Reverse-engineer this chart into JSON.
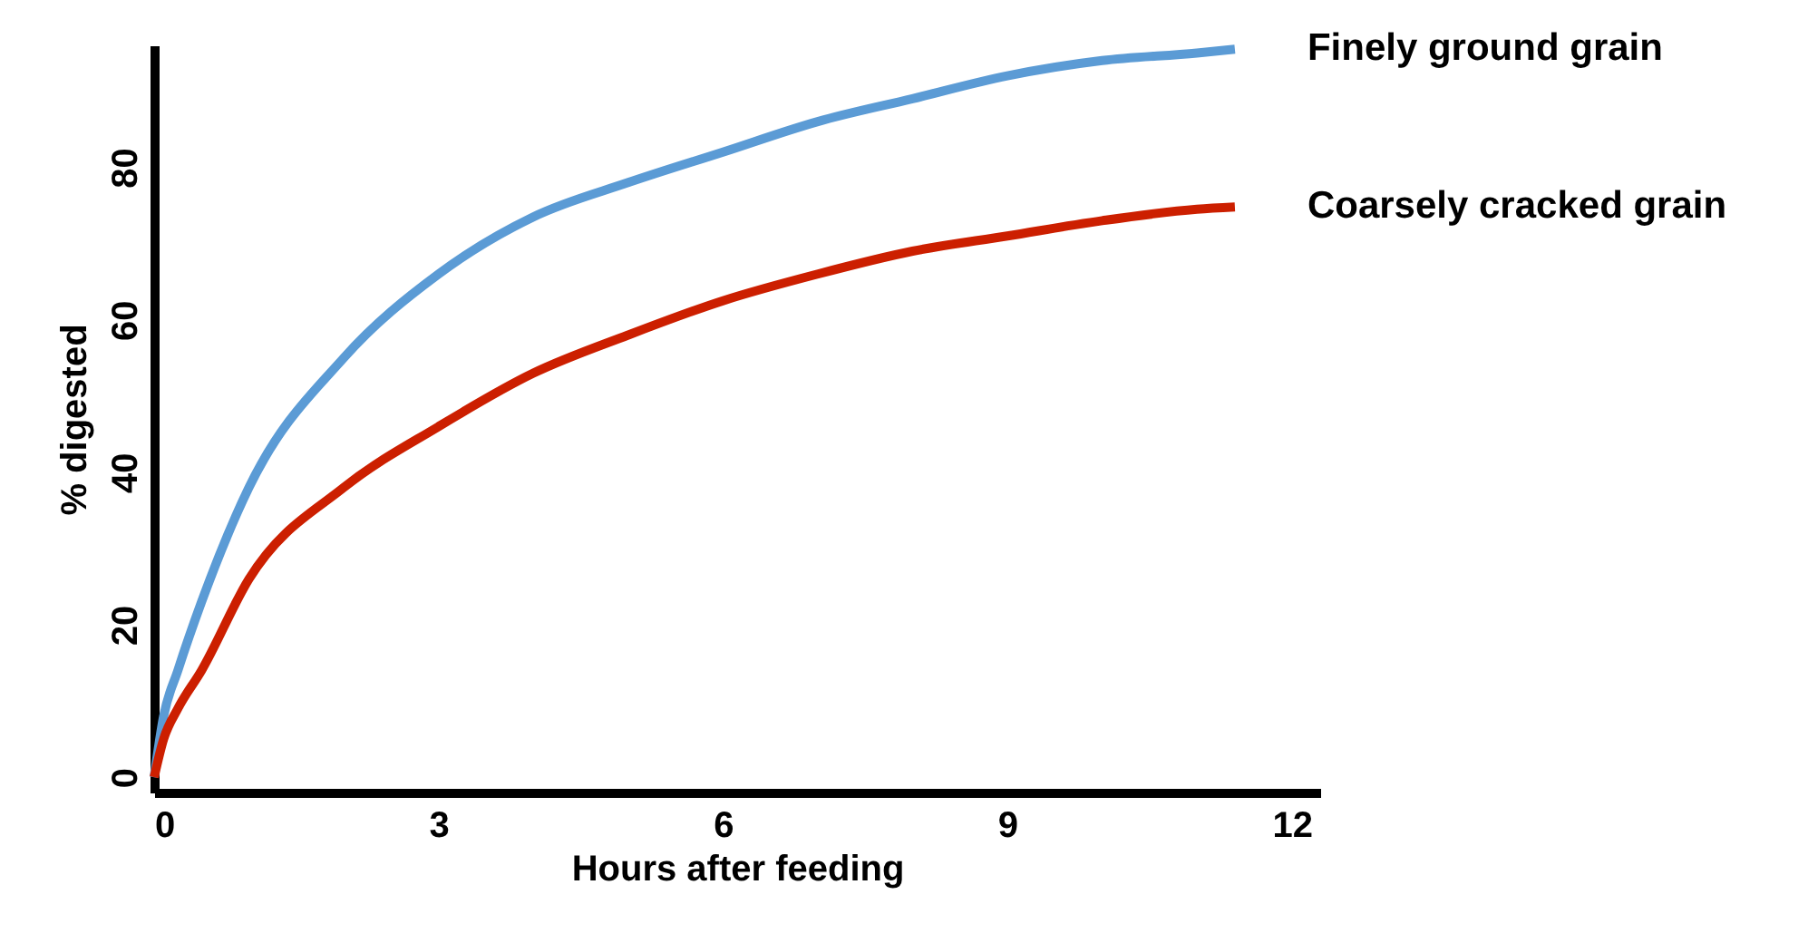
{
  "chart_data": {
    "type": "line",
    "xlabel": "Hours after feeding",
    "ylabel": "% digested",
    "xlim": [
      0,
      12.3
    ],
    "ylim": [
      -2,
      96
    ],
    "xticks": [
      0,
      3,
      6,
      9,
      12
    ],
    "yticks": [
      0,
      20,
      40,
      60,
      80
    ],
    "grid": false,
    "legend": false,
    "marker": "none",
    "line_style": "solid",
    "series": [
      {
        "name": "Finely ground grain",
        "color": "#5b9bd5",
        "x": [
          0,
          0.1,
          0.25,
          0.5,
          1,
          2,
          3,
          4,
          5,
          6,
          7,
          8,
          9,
          10,
          11,
          11.4
        ],
        "values": [
          0,
          8,
          14,
          23,
          38,
          55,
          66,
          73.5,
          78,
          82,
          86,
          89,
          92,
          94,
          95,
          95.5
        ]
      },
      {
        "name": "Coarsely cracked grain",
        "color": "#cc1f00",
        "x": [
          0,
          0.1,
          0.25,
          0.5,
          1,
          2,
          3,
          4,
          5,
          6,
          7,
          8,
          9,
          10,
          11,
          11.4
        ],
        "values": [
          0,
          5,
          9,
          14,
          26,
          38,
          46,
          53,
          58,
          62.5,
          66,
          69,
          71,
          73,
          74.5,
          74.8
        ]
      }
    ]
  }
}
